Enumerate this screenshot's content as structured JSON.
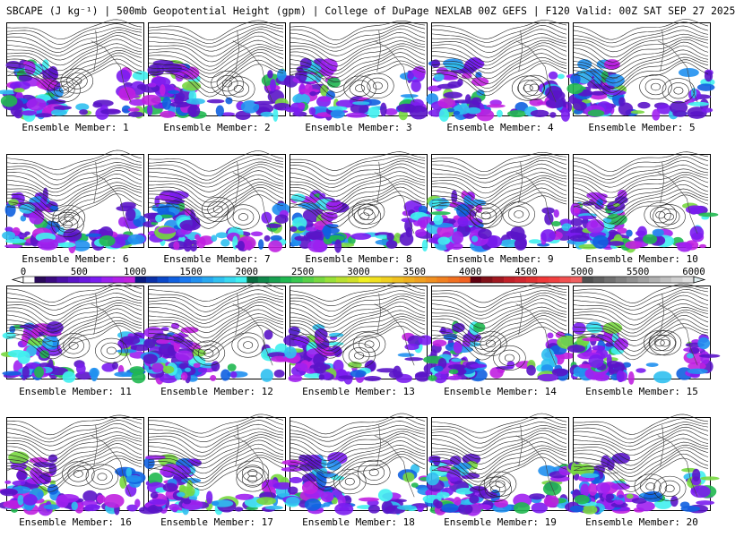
{
  "header": {
    "title": "SBCAPE (J kg⁻¹) | 500mb Geopotential Height (gpm) | College of DuPage NEXLAB 00Z GEFS | F120 Valid: 00Z SAT SEP 27 2025"
  },
  "members": [
    {
      "label": "Ensemble Member: 1"
    },
    {
      "label": "Ensemble Member: 2"
    },
    {
      "label": "Ensemble Member: 3"
    },
    {
      "label": "Ensemble Member: 4"
    },
    {
      "label": "Ensemble Member: 5"
    },
    {
      "label": "Ensemble Member: 6"
    },
    {
      "label": "Ensemble Member: 7"
    },
    {
      "label": "Ensemble Member: 8"
    },
    {
      "label": "Ensemble Member: 9"
    },
    {
      "label": "Ensemble Member: 10"
    },
    {
      "label": "Ensemble Member: 11"
    },
    {
      "label": "Ensemble Member: 12"
    },
    {
      "label": "Ensemble Member: 13"
    },
    {
      "label": "Ensemble Member: 14"
    },
    {
      "label": "Ensemble Member: 15"
    },
    {
      "label": "Ensemble Member: 16"
    },
    {
      "label": "Ensemble Member: 17"
    },
    {
      "label": "Ensemble Member: 18"
    },
    {
      "label": "Ensemble Member: 19"
    },
    {
      "label": "Ensemble Member: 20"
    }
  ],
  "colorbar": {
    "tick_labels": [
      "0",
      "500",
      "1000",
      "1500",
      "2000",
      "2500",
      "3000",
      "3500",
      "4000",
      "4500",
      "5000",
      "5500",
      "6000"
    ],
    "min": 0,
    "max": 6000,
    "step": 100,
    "colors": [
      "#ffffff",
      "#2a0a5a",
      "#3a0a80",
      "#4a10a8",
      "#5a14c8",
      "#6a18e0",
      "#7a1cf0",
      "#9a20f0",
      "#b020e8",
      "#c020e0",
      "#0a1a80",
      "#0a30a8",
      "#0a48c8",
      "#1060e0",
      "#1878f0",
      "#2090f0",
      "#28a8f0",
      "#30c0f0",
      "#38d8f0",
      "#40f0f0",
      "#0a6a40",
      "#10884a",
      "#18a050",
      "#20b850",
      "#38c850",
      "#58d048",
      "#78d840",
      "#98e038",
      "#b8e030",
      "#d0e028",
      "#f0f020",
      "#f0e020",
      "#f0d020",
      "#f0c020",
      "#f0b020",
      "#f0a020",
      "#f09020",
      "#f08020",
      "#f07020",
      "#f06020",
      "#600010",
      "#801018",
      "#a01820",
      "#c02028",
      "#d02830",
      "#e03030",
      "#f03838",
      "#f04040",
      "#f05050",
      "#f06060",
      "#505050",
      "#606060",
      "#707070",
      "#808080",
      "#909090",
      "#a0a0a0",
      "#b0b0b0",
      "#c0c0c0",
      "#d0d0d0",
      "#e0e0e0"
    ]
  }
}
